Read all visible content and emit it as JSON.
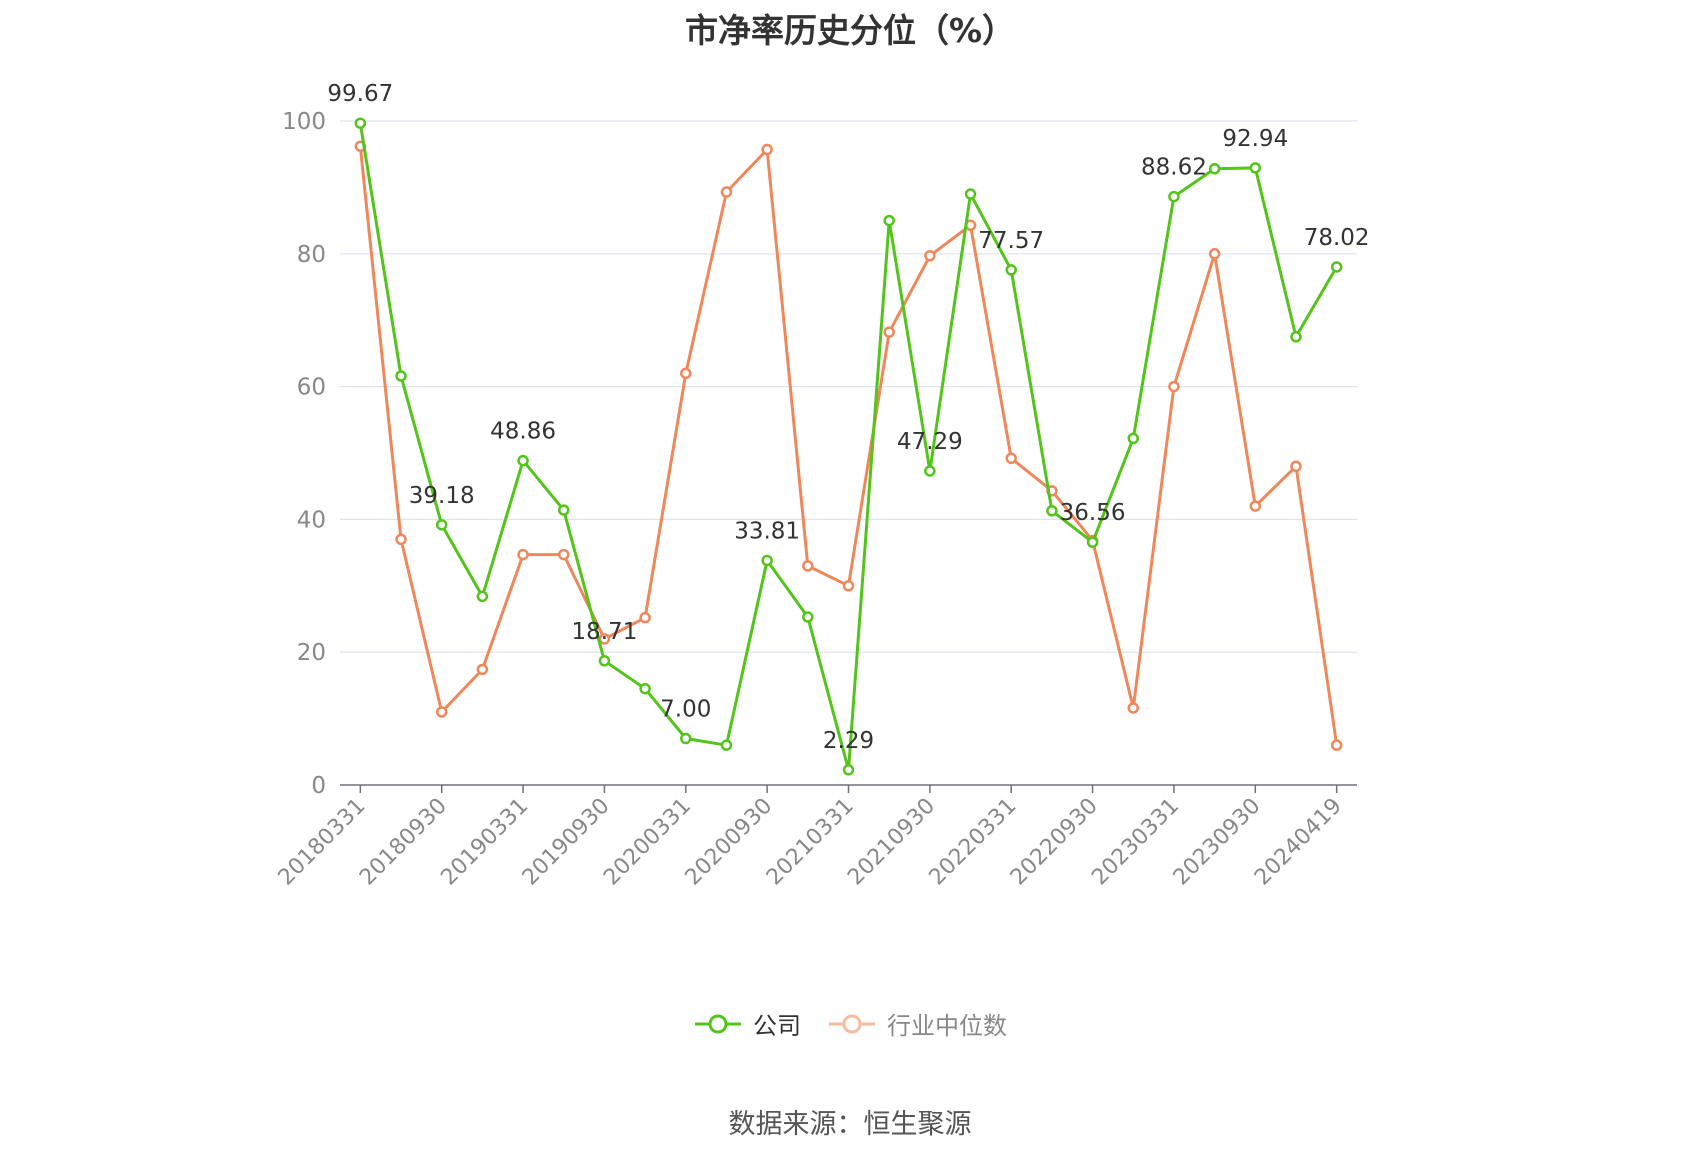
{
  "chart_data": {
    "type": "line",
    "title": "市净率历史分位（%）",
    "xlabel": "",
    "ylabel": "",
    "ylim": [
      0,
      100
    ],
    "yticks": [
      0,
      20,
      40,
      60,
      80,
      100
    ],
    "grid": true,
    "legend_position": "bottom",
    "x": [
      "20180331",
      "20180630",
      "20180930",
      "20181231",
      "20190331",
      "20190630",
      "20190930",
      "20191231",
      "20200331",
      "20200630",
      "20200930",
      "20201231",
      "20210331",
      "20210630",
      "20210930",
      "20211231",
      "20220331",
      "20220630",
      "20220930",
      "20221231",
      "20230331",
      "20230630",
      "20230930",
      "20231231",
      "20240419"
    ],
    "x_tick_labels": [
      "20180331",
      "20180930",
      "20190331",
      "20190930",
      "20200331",
      "20200930",
      "20210331",
      "20210930",
      "20220331",
      "20220930",
      "20230331",
      "20230930",
      "20240419"
    ],
    "series": [
      {
        "name": "公司",
        "color": "#52c41a",
        "values": [
          99.67,
          61.6,
          39.18,
          28.4,
          48.86,
          41.4,
          18.71,
          14.5,
          7.0,
          6.0,
          33.81,
          25.3,
          2.29,
          85.0,
          47.29,
          89.0,
          77.57,
          41.3,
          36.56,
          52.2,
          88.62,
          92.8,
          92.94,
          67.5,
          78.02
        ],
        "data_labels": [
          "99.67",
          "",
          "39.18",
          "",
          "48.86",
          "",
          "18.71",
          "",
          "7.00",
          "",
          "33.81",
          "",
          "2.29",
          "",
          "47.29",
          "",
          "77.57",
          "",
          "36.56",
          "",
          "88.62",
          "",
          "92.94",
          "",
          "78.02"
        ]
      },
      {
        "name": "行业中位数",
        "color": "#f0875a",
        "values": [
          96.2,
          37.0,
          11.0,
          17.4,
          34.7,
          34.7,
          22.0,
          25.2,
          62.0,
          89.3,
          95.7,
          33.0,
          30.0,
          68.2,
          79.7,
          84.3,
          49.2,
          44.3,
          36.8,
          11.6,
          60.0,
          80.0,
          42.0,
          48.0,
          6.0
        ]
      }
    ]
  },
  "source_text": "数据来源：恒生聚源"
}
